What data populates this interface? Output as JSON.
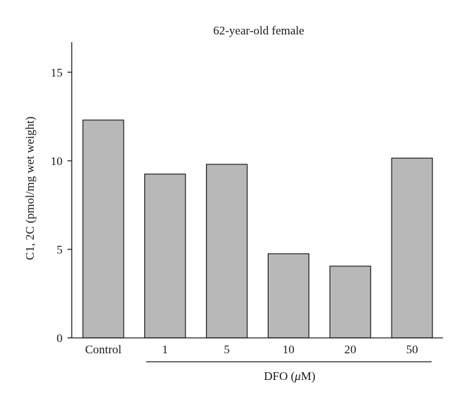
{
  "chart_data": {
    "type": "bar",
    "title": "62-year-old female",
    "ylabel": "C1, 2C (pmol/mg wet weight)",
    "xlabel_prefix": "DFO (",
    "xlabel_unit": "μ",
    "xlabel_suffix": "M)",
    "categories": [
      "Control",
      "1",
      "5",
      "10",
      "20",
      "50"
    ],
    "values": [
      12.3,
      9.25,
      9.8,
      4.75,
      4.05,
      10.15
    ],
    "ylim": [
      0,
      16.7
    ],
    "yticks": [
      "0",
      "5",
      "10",
      "15"
    ],
    "bar_color": "#b8b8b8",
    "grid": false,
    "legend": "none"
  }
}
